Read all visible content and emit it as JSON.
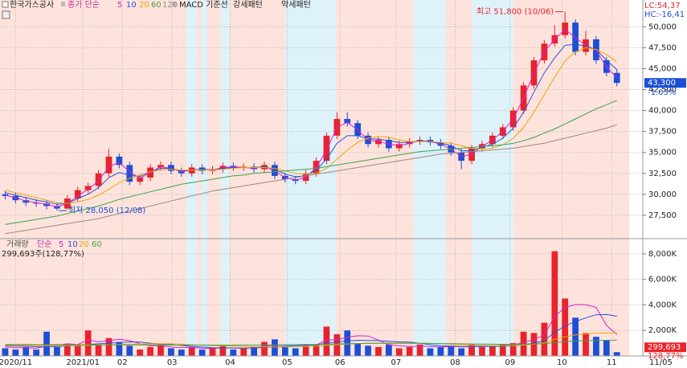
{
  "chart_data": [
    {
      "type": "candlestick",
      "title": "한국가스공사",
      "legend_prefix": "종가 단순",
      "overlay_labels": [
        "MACD 기준선",
        "강세패턴",
        "약세패턴"
      ],
      "indicators": [
        "LC:54,37",
        "HC:-16,41"
      ],
      "up_color": "#e8232b",
      "down_color": "#1c4fd6",
      "xlim": [
        0,
        62
      ],
      "xticks": [
        {
          "value": 1.5,
          "label": "2020/11"
        },
        {
          "value": 8,
          "label": "2021/01"
        },
        {
          "value": 11.8,
          "label": "02"
        },
        {
          "value": 16.6,
          "label": "03"
        },
        {
          "value": 22.2,
          "label": "04"
        },
        {
          "value": 27.7,
          "label": "05"
        },
        {
          "value": 32.8,
          "label": "06"
        },
        {
          "value": 38.2,
          "label": "07"
        },
        {
          "value": 43.9,
          "label": "08"
        },
        {
          "value": 49.2,
          "label": "09"
        },
        {
          "value": 54.2,
          "label": "10"
        },
        {
          "value": 59,
          "label": "11"
        }
      ],
      "date_label": "11/05",
      "ylim": [
        24900,
        53200
      ],
      "yticks": [
        {
          "value": 27500,
          "label": "27,500"
        },
        {
          "value": 30000,
          "label": "30,000"
        },
        {
          "value": 32500,
          "label": "32,500"
        },
        {
          "value": 35000,
          "label": "35,000"
        },
        {
          "value": 37500,
          "label": "37,500"
        },
        {
          "value": 40000,
          "label": "40,000"
        },
        {
          "value": 42500,
          "label": "42,500"
        },
        {
          "value": 45000,
          "label": "45,000"
        },
        {
          "value": 47500,
          "label": "47,500"
        },
        {
          "value": 50000,
          "label": "50,000"
        }
      ],
      "grid": true,
      "bands": [
        {
          "start": 0,
          "end": 18,
          "color": "#fde3dc"
        },
        {
          "start": 18,
          "end": 19,
          "color": "#def2fa"
        },
        {
          "start": 19,
          "end": 19.4,
          "color": "#fde3dc"
        },
        {
          "start": 19.4,
          "end": 20,
          "color": "#def2fa"
        },
        {
          "start": 20,
          "end": 21.3,
          "color": "#fde3dc"
        },
        {
          "start": 21.3,
          "end": 22.1,
          "color": "#def2fa"
        },
        {
          "start": 22.1,
          "end": 27.5,
          "color": "#fde3dc"
        },
        {
          "start": 27.5,
          "end": 32.4,
          "color": "#def2fa"
        },
        {
          "start": 32.4,
          "end": 39.9,
          "color": "#fde3dc"
        },
        {
          "start": 39.9,
          "end": 43,
          "color": "#def2fa"
        },
        {
          "start": 43,
          "end": 45.5,
          "color": "#fde3dc"
        },
        {
          "start": 45.5,
          "end": 49.5,
          "color": "#def2fa"
        },
        {
          "start": 49.5,
          "end": 60.7,
          "color": "#fde3dc"
        }
      ],
      "open": [
        30000,
        29800,
        29300,
        29000,
        28900,
        28600,
        28300,
        29500,
        30500,
        31000,
        32500,
        34500,
        33500,
        31500,
        32000,
        33200,
        33500,
        32800,
        32500,
        33200,
        32800,
        33000,
        33400,
        33200,
        33300,
        33000,
        33500,
        32200,
        31800,
        31600,
        32500,
        34000,
        37000,
        39000,
        38500,
        37000,
        36000,
        36500,
        35500,
        36000,
        36300,
        36500,
        36200,
        35800,
        35000,
        34000,
        35500,
        36000,
        37000,
        38000,
        40000,
        43000,
        46000,
        48000,
        49000,
        50500,
        47000,
        48500,
        46000,
        44500
      ],
      "high": [
        30400,
        30200,
        29700,
        29400,
        29300,
        29000,
        29900,
        30900,
        31400,
        32900,
        35400,
        34900,
        33900,
        32400,
        33600,
        33900,
        33900,
        33200,
        33600,
        33600,
        33400,
        33800,
        33800,
        33700,
        33700,
        33900,
        33900,
        32600,
        32200,
        32900,
        34400,
        37400,
        39800,
        39800,
        38900,
        37400,
        36900,
        36900,
        36400,
        36700,
        36900,
        36900,
        36600,
        36200,
        35400,
        35900,
        36400,
        37400,
        38400,
        40400,
        43400,
        46400,
        48400,
        50200,
        51800,
        50900,
        49500,
        48900,
        46400,
        44900
      ],
      "low": [
        29400,
        28900,
        28600,
        28500,
        28200,
        28050,
        28200,
        29100,
        30100,
        30600,
        32100,
        33100,
        31100,
        31100,
        31600,
        32800,
        32400,
        32100,
        32100,
        32400,
        32400,
        32600,
        32800,
        32800,
        32600,
        32600,
        31800,
        31400,
        31200,
        31200,
        32100,
        33600,
        36600,
        38100,
        36600,
        35600,
        35600,
        35100,
        35100,
        35600,
        35900,
        35800,
        35400,
        34600,
        33000,
        33600,
        35100,
        35600,
        36600,
        37600,
        39600,
        42600,
        45600,
        47600,
        48600,
        46600,
        46600,
        45600,
        44100,
        42900
      ],
      "close": [
        29800,
        29300,
        29000,
        28900,
        28600,
        28300,
        29500,
        30500,
        31000,
        32500,
        34500,
        33500,
        31500,
        32000,
        33200,
        33500,
        32800,
        32500,
        33200,
        32800,
        33000,
        33400,
        33200,
        33300,
        33000,
        33500,
        32200,
        31800,
        31600,
        32500,
        34000,
        37000,
        39000,
        38500,
        37000,
        36000,
        36500,
        35500,
        36000,
        36300,
        36500,
        36200,
        35800,
        35000,
        34000,
        35500,
        36000,
        37000,
        38000,
        40000,
        43000,
        46000,
        48000,
        49000,
        50500,
        47000,
        48500,
        46000,
        44500,
        43300
      ],
      "series": [
        {
          "name": "5",
          "color": "#d81fd0",
          "values": [
            29900,
            29600,
            29200,
            29000,
            28800,
            28500,
            28900,
            29800,
            30600,
            31600,
            33300,
            33800,
            32700,
            31900,
            32600,
            33300,
            33100,
            32700,
            32900,
            33000,
            32900,
            33200,
            33300,
            33200,
            33100,
            33300,
            32800,
            32000,
            31700,
            32000,
            33200,
            35300,
            38000,
            38600,
            37700,
            36500,
            36300,
            36000,
            35800,
            36100,
            36400,
            36300,
            36000,
            35400,
            34500,
            34800,
            35700,
            36500,
            37500,
            39000,
            41500,
            44500,
            47000,
            48500,
            49700,
            48700,
            47800,
            47200,
            45200,
            43900
          ]
        },
        {
          "name": "10",
          "color": "#2a4fe0",
          "values": [
            30200,
            29900,
            29600,
            29300,
            29100,
            28800,
            28900,
            29500,
            30000,
            30800,
            32000,
            32600,
            32300,
            32100,
            32700,
            33100,
            33100,
            32800,
            32900,
            33000,
            32900,
            33100,
            33200,
            33200,
            33200,
            33300,
            33000,
            32400,
            32100,
            32200,
            32900,
            34200,
            36100,
            37000,
            37000,
            36600,
            36600,
            36400,
            36200,
            36200,
            36400,
            36300,
            36100,
            35800,
            35200,
            35200,
            35600,
            36000,
            36700,
            37900,
            39800,
            42200,
            44500,
            46300,
            47800,
            47900,
            47700,
            47300,
            46000,
            44900
          ]
        },
        {
          "name": "20",
          "color": "#f2a400",
          "values": [
            30500,
            30200,
            29900,
            29600,
            29300,
            29000,
            28900,
            29100,
            29400,
            29900,
            30600,
            31400,
            31900,
            32300,
            32700,
            32900,
            33000,
            32900,
            32900,
            32900,
            32900,
            33000,
            33100,
            33200,
            33200,
            33200,
            33100,
            32800,
            32500,
            32400,
            32500,
            33100,
            34200,
            35300,
            36200,
            36700,
            36900,
            36800,
            36500,
            36300,
            36300,
            36300,
            36200,
            36100,
            35800,
            35500,
            35400,
            35500,
            35900,
            36700,
            38000,
            39800,
            41900,
            44000,
            45900,
            47000,
            47500,
            47300,
            46700,
            45800
          ]
        },
        {
          "name": "60",
          "color": "#3fa34a",
          "values": [
            26400,
            26600,
            26800,
            27000,
            27200,
            27400,
            27700,
            28000,
            28300,
            28600,
            29000,
            29400,
            29700,
            30000,
            30300,
            30600,
            30900,
            31200,
            31400,
            31600,
            31800,
            32000,
            32200,
            32300,
            32500,
            32600,
            32700,
            32800,
            32900,
            33000,
            33100,
            33300,
            33500,
            33700,
            33900,
            34100,
            34300,
            34500,
            34700,
            34900,
            35100,
            35200,
            35300,
            35400,
            35500,
            35600,
            35700,
            35800,
            35900,
            36100,
            36400,
            36800,
            37300,
            37800,
            38400,
            39000,
            39600,
            40200,
            40700,
            41200
          ]
        },
        {
          "name": "120",
          "color": "#9a8a80",
          "values": [
            25300,
            25500,
            25700,
            25900,
            26100,
            26300,
            26500,
            26700,
            26900,
            27100,
            27400,
            27700,
            28000,
            28300,
            28600,
            28900,
            29200,
            29500,
            29800,
            30100,
            30400,
            30600,
            30800,
            31000,
            31200,
            31400,
            31600,
            31800,
            32000,
            32200,
            32400,
            32600,
            32800,
            33000,
            33200,
            33400,
            33600,
            33800,
            34000,
            34200,
            34400,
            34600,
            34800,
            34900,
            35000,
            35100,
            35200,
            35300,
            35400,
            35500,
            35700,
            35900,
            36100,
            36400,
            36700,
            37000,
            37300,
            37600,
            37900,
            38300
          ]
        }
      ],
      "annotations": [
        {
          "text": "최고 51,800 (10/06)",
          "value": 51800,
          "index": 54
        },
        {
          "text": "최저 28,050 (12/08)",
          "value": 28050,
          "index": 5
        }
      ],
      "last_price": 43300,
      "last_price_label": "43,300",
      "change_label": "-1.03%"
    },
    {
      "type": "bar",
      "title": "거래량",
      "legend_prefix": "단순",
      "summary": "299,693주(128,77%)",
      "ylim": [
        0,
        9000
      ],
      "yticks": [
        {
          "value": 2000,
          "label": "2,000K"
        },
        {
          "value": 4000,
          "label": "4,000K"
        },
        {
          "value": 6000,
          "label": "6,000K"
        },
        {
          "value": 8000,
          "label": "8,000K"
        }
      ],
      "grid": true,
      "values": [
        600,
        500,
        700,
        500,
        1900,
        700,
        900,
        800,
        2000,
        900,
        1400,
        1100,
        800,
        500,
        700,
        900,
        600,
        500,
        700,
        500,
        600,
        800,
        500,
        600,
        700,
        1100,
        1300,
        700,
        600,
        800,
        900,
        2300,
        1700,
        2000,
        1000,
        800,
        700,
        900,
        600,
        700,
        900,
        600,
        700,
        800,
        600,
        900,
        700,
        800,
        900,
        1000,
        1900,
        1800,
        2600,
        8200,
        4500,
        3000,
        1800,
        1500,
        1200,
        300
      ],
      "series": [
        {
          "name": "5",
          "color": "#d81fd0",
          "values": [
            700,
            650,
            650,
            600,
            800,
            850,
            950,
            900,
            1250,
            1100,
            1200,
            1300,
            1200,
            950,
            800,
            800,
            700,
            650,
            680,
            600,
            600,
            620,
            620,
            600,
            640,
            760,
            840,
            880,
            880,
            900,
            860,
            1260,
            1260,
            1460,
            1580,
            1560,
            1240,
            880,
            800,
            740,
            760,
            740,
            700,
            740,
            720,
            720,
            760,
            760,
            800,
            860,
            1060,
            1280,
            1640,
            3100,
            3800,
            4020,
            4020,
            3800,
            2400,
            1680
          ]
        },
        {
          "name": "10",
          "color": "#2a4fe0",
          "values": [
            800,
            780,
            760,
            720,
            720,
            740,
            780,
            800,
            900,
            950,
            1000,
            1050,
            1100,
            1080,
            1000,
            930,
            880,
            820,
            750,
            700,
            650,
            630,
            620,
            610,
            620,
            660,
            710,
            760,
            800,
            830,
            860,
            1010,
            1100,
            1170,
            1230,
            1210,
            1200,
            1150,
            1100,
            1080,
            1000,
            880,
            790,
            770,
            740,
            740,
            740,
            750,
            760,
            790,
            890,
            1000,
            1200,
            1860,
            2350,
            2700,
            2980,
            3230,
            3250,
            3110
          ]
        },
        {
          "name": "20",
          "color": "#f2a400",
          "values": [
            850,
            840,
            830,
            820,
            810,
            800,
            800,
            810,
            830,
            850,
            870,
            900,
            920,
            940,
            950,
            960,
            950,
            920,
            880,
            840,
            810,
            790,
            770,
            750,
            720,
            700,
            700,
            710,
            720,
            740,
            760,
            830,
            880,
            930,
            970,
            1000,
            1010,
            1020,
            1020,
            1010,
            1000,
            980,
            950,
            920,
            880,
            840,
            820,
            800,
            800,
            810,
            850,
            920,
            1020,
            1300,
            1500,
            1640,
            1730,
            1790,
            1800,
            1800
          ]
        },
        {
          "name": "60",
          "color": "#3fa34a",
          "values": [
            900,
            900,
            900,
            890,
            890,
            890,
            880,
            880,
            880,
            870,
            870,
            870,
            860,
            860,
            860,
            860,
            850,
            850,
            850,
            850,
            850,
            850,
            850,
            850,
            850,
            850,
            860,
            870,
            880,
            890,
            900,
            920,
            940,
            960,
            970,
            980,
            990,
            990,
            990,
            990,
            990,
            980,
            970,
            960,
            950,
            940,
            930,
            920,
            910,
            910,
            920,
            940,
            960,
            1060,
            1120,
            1170,
            1200,
            1220,
            1230,
            1240
          ]
        }
      ],
      "last_value": 300,
      "last_value_label": "299,693",
      "ratio_label": "128,77%"
    }
  ]
}
